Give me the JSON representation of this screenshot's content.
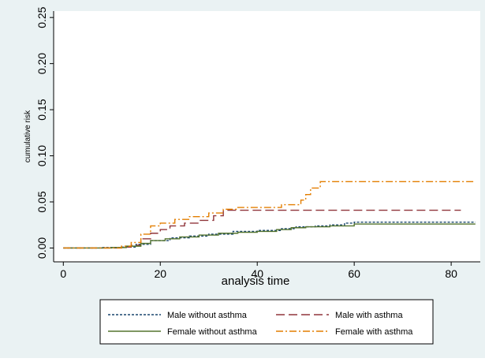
{
  "chart_data": {
    "type": "line",
    "title": "",
    "xlabel": "analysis time",
    "ylabel": "cumulative risk",
    "xlim": [
      -2,
      86
    ],
    "ylim": [
      -0.015,
      0.257
    ],
    "x_ticks": [
      0,
      20,
      40,
      60,
      80
    ],
    "x_tick_labels": [
      "0",
      "20",
      "40",
      "60",
      "80"
    ],
    "y_ticks": [
      0.0,
      0.05,
      0.1,
      0.15,
      0.2,
      0.25
    ],
    "y_tick_labels": [
      "0.00",
      "0.05",
      "0.10",
      "0.15",
      "0.20",
      "0.25"
    ],
    "grid": false,
    "legend_position": "bottom",
    "series": [
      {
        "name": "Male without asthma",
        "color": "#1a476f",
        "dash": "short-dash",
        "x": [
          0,
          8,
          12,
          15,
          18,
          22,
          26,
          30,
          35,
          40,
          45,
          48,
          52,
          55,
          58,
          60,
          85
        ],
        "y": [
          0,
          0.0005,
          0.001,
          0.004,
          0.008,
          0.011,
          0.013,
          0.015,
          0.018,
          0.019,
          0.021,
          0.023,
          0.024,
          0.025,
          0.027,
          0.028,
          0.028
        ]
      },
      {
        "name": "Male with asthma",
        "color": "#90353b",
        "dash": "long-dash",
        "x": [
          0,
          12,
          14,
          16,
          18,
          20,
          22,
          25,
          28,
          31,
          33,
          35,
          40,
          50,
          82
        ],
        "y": [
          0,
          0.001,
          0.003,
          0.01,
          0.016,
          0.02,
          0.024,
          0.027,
          0.03,
          0.035,
          0.041,
          0.041,
          0.041,
          0.041,
          0.041
        ]
      },
      {
        "name": "Female without asthma",
        "color": "#55752f",
        "dash": "solid",
        "x": [
          0,
          10,
          13,
          16,
          18,
          21,
          24,
          28,
          32,
          36,
          40,
          44,
          47,
          50,
          55,
          60,
          85
        ],
        "y": [
          0,
          0.0005,
          0.002,
          0.005,
          0.008,
          0.01,
          0.012,
          0.014,
          0.016,
          0.017,
          0.018,
          0.02,
          0.022,
          0.023,
          0.024,
          0.026,
          0.026
        ]
      },
      {
        "name": "Female with asthma",
        "color": "#e37e00",
        "dash": "dash-dot",
        "x": [
          0,
          12,
          14,
          16,
          18,
          20,
          23,
          26,
          30,
          33,
          36,
          40,
          45,
          49,
          50,
          51,
          53,
          60,
          85
        ],
        "y": [
          0,
          0.002,
          0.006,
          0.015,
          0.024,
          0.027,
          0.031,
          0.034,
          0.038,
          0.042,
          0.044,
          0.044,
          0.047,
          0.052,
          0.058,
          0.065,
          0.072,
          0.072,
          0.072
        ]
      }
    ]
  }
}
